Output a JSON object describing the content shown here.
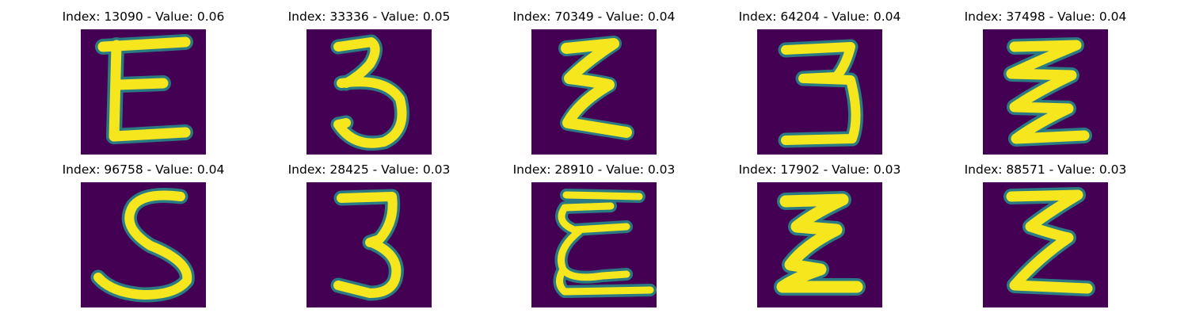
{
  "colors": {
    "background": "#440154",
    "stroke": "#f5e61e",
    "edge": "#26908c",
    "text": "#000000"
  },
  "panels": [
    {
      "title": "Index: 13090 - Value: 0.06",
      "digit": "E"
    },
    {
      "title": "Index: 33336 - Value: 0.05",
      "digit": "3"
    },
    {
      "title": "Index: 70349 - Value: 0.04",
      "digit": "E"
    },
    {
      "title": "Index: 64204 - Value: 0.04",
      "digit": "3"
    },
    {
      "title": "Index: 37498 - Value: 0.04",
      "digit": "Z"
    },
    {
      "title": "Index: 96758 - Value: 0.04",
      "digit": "S"
    },
    {
      "title": "Index: 28425 - Value: 0.03",
      "digit": "3"
    },
    {
      "title": "Index: 28910 - Value: 0.03",
      "digit": "E"
    },
    {
      "title": "Index: 17902 - Value: 0.03",
      "digit": "E"
    },
    {
      "title": "Index: 88571 - Value: 0.03",
      "digit": "E"
    }
  ]
}
